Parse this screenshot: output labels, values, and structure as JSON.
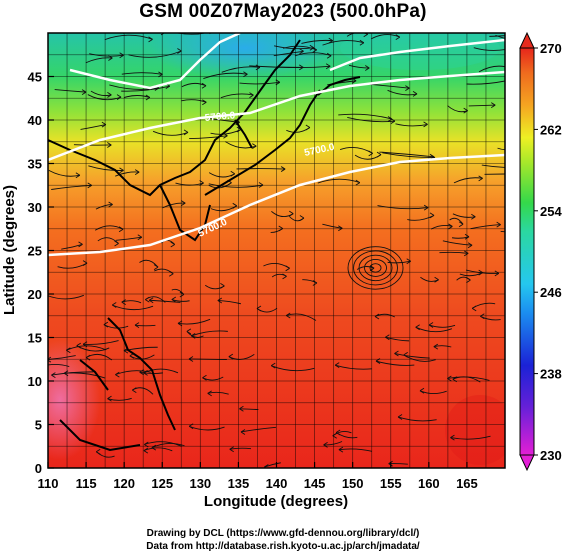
{
  "title": "GSM 00Z07May2023 (500.0hPa)",
  "axes": {
    "xlabel": "Longitude (degrees)",
    "ylabel": "Latitude  (degrees)",
    "xticks": [
      "110",
      "115",
      "120",
      "125",
      "130",
      "135",
      "140",
      "145",
      "150",
      "155",
      "160",
      "165"
    ],
    "yticks": [
      "0",
      "5",
      "10",
      "15",
      "20",
      "25",
      "30",
      "35",
      "40",
      "45"
    ],
    "xlim": [
      110,
      170
    ],
    "ylim": [
      0,
      50
    ]
  },
  "colorbar": {
    "labels": [
      "230",
      "238",
      "246",
      "254",
      "262",
      "270"
    ],
    "range": [
      230,
      270
    ]
  },
  "contours": {
    "label": "5700.0"
  },
  "credits": {
    "line1": "Drawing by DCL (https://www.gfd-dennou.org/library/dcl/)",
    "line2": "Data from http://database.rish.kyoto-u.ac.jp/arch/jmadata/"
  },
  "chart_data": {
    "type": "heatmap",
    "title": "GSM 00Z07May2023 (500.0hPa)",
    "xlabel": "Longitude (degrees)",
    "ylabel": "Latitude  (degrees)",
    "xlim": [
      110,
      170
    ],
    "ylim": [
      0,
      50
    ],
    "colorbar": {
      "min": 230,
      "max": 270,
      "ticks": [
        230,
        238,
        246,
        254,
        262,
        270
      ]
    },
    "field_values_by_latitude": [
      {
        "lat": 2.5,
        "value": 268
      },
      {
        "lat": 7.5,
        "value": 267.5
      },
      {
        "lat": 12.5,
        "value": 267
      },
      {
        "lat": 17.5,
        "value": 266.5
      },
      {
        "lat": 22.5,
        "value": 266
      },
      {
        "lat": 27.5,
        "value": 265
      },
      {
        "lat": 32.5,
        "value": 263
      },
      {
        "lat": 37.5,
        "value": 259
      },
      {
        "lat": 42.5,
        "value": 254
      },
      {
        "lat": 47.5,
        "value": 249
      }
    ],
    "features": [
      "cyclonic circulation near 153E 23N",
      "streamlines",
      "geopotential height contours"
    ],
    "grid": true
  },
  "colors": {
    "magenta": "#e62fd9",
    "blue": "#1e2bd6",
    "cyan": "#27c7ee",
    "green": "#34d84d",
    "yellow": "#e8ef23",
    "orange": "#f6a421",
    "red": "#e8271c"
  }
}
